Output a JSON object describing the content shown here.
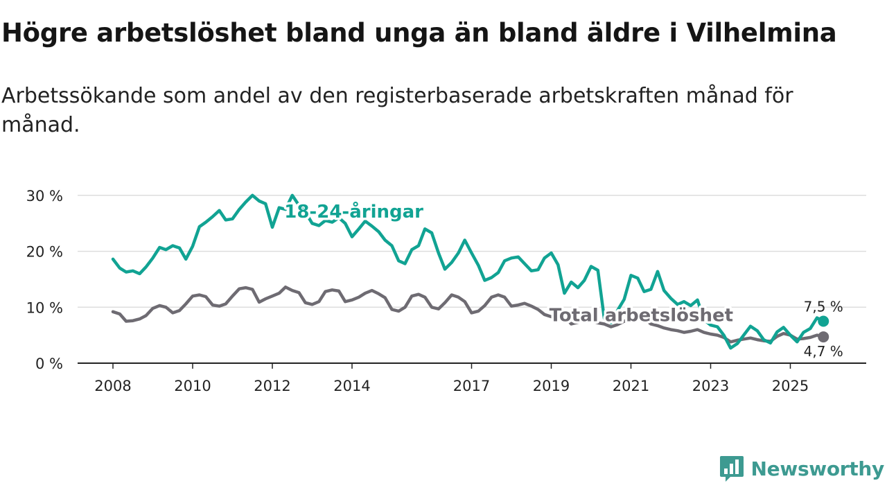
{
  "colors": {
    "youth": "#11a393",
    "total": "#6e6b72",
    "grid": "#dddddd",
    "axis": "#222222",
    "brand": "#3d9a91"
  },
  "brand": {
    "name": "Newsworthy",
    "icon": "bar-chart-speech-bubble-icon"
  },
  "chart_data": {
    "type": "line",
    "title": "Högre arbetslöshet bland unga än bland äldre i Vilhelmina",
    "subtitle": "Arbetssökande som andel av den registerbaserade arbetskraften månad för månad.",
    "xlim": [
      2008,
      2027
    ],
    "ylim": [
      0,
      30
    ],
    "y_ticks": [
      0,
      10,
      20,
      30
    ],
    "y_tick_labels": [
      "0 %",
      "10 %",
      "20 %",
      "30 %"
    ],
    "x_ticks": [
      2008,
      2010,
      2012,
      2014,
      2017,
      2019,
      2021,
      2023,
      2025
    ],
    "x_tick_labels": [
      "2008",
      "2010",
      "2012",
      "2014",
      "2017",
      "2019",
      "2021",
      "2023",
      "2025"
    ],
    "grid": true,
    "series": [
      {
        "name": "18-24-åringar",
        "end_label": "7,5 %",
        "label_anchor": [
          2012.3,
          26
        ],
        "points": [
          [
            2008.0,
            18.6
          ],
          [
            2008.17,
            17.0
          ],
          [
            2008.33,
            16.3
          ],
          [
            2008.5,
            16.5
          ],
          [
            2008.67,
            16.0
          ],
          [
            2008.83,
            17.2
          ],
          [
            2009.0,
            18.8
          ],
          [
            2009.17,
            20.7
          ],
          [
            2009.33,
            20.3
          ],
          [
            2009.5,
            21.0
          ],
          [
            2009.67,
            20.6
          ],
          [
            2009.83,
            18.6
          ],
          [
            2010.0,
            20.9
          ],
          [
            2010.17,
            24.4
          ],
          [
            2010.33,
            25.2
          ],
          [
            2010.5,
            26.2
          ],
          [
            2010.67,
            27.3
          ],
          [
            2010.83,
            25.6
          ],
          [
            2011.0,
            25.8
          ],
          [
            2011.17,
            27.5
          ],
          [
            2011.33,
            28.8
          ],
          [
            2011.5,
            30.0
          ],
          [
            2011.67,
            29.0
          ],
          [
            2011.83,
            28.5
          ],
          [
            2012.0,
            24.3
          ],
          [
            2012.17,
            27.8
          ],
          [
            2012.33,
            27.5
          ],
          [
            2012.5,
            30.0
          ],
          [
            2012.67,
            28.2
          ],
          [
            2012.83,
            27.0
          ],
          [
            2013.0,
            25.0
          ],
          [
            2013.17,
            24.6
          ],
          [
            2013.33,
            25.5
          ],
          [
            2013.5,
            25.2
          ],
          [
            2013.67,
            26.0
          ],
          [
            2013.83,
            25.0
          ],
          [
            2014.0,
            22.6
          ],
          [
            2014.17,
            24.0
          ],
          [
            2014.33,
            25.4
          ],
          [
            2014.5,
            24.5
          ],
          [
            2014.67,
            23.5
          ],
          [
            2014.83,
            22.0
          ],
          [
            2015.0,
            21.0
          ],
          [
            2015.17,
            18.3
          ],
          [
            2015.33,
            17.8
          ],
          [
            2015.5,
            20.3
          ],
          [
            2015.67,
            21.0
          ],
          [
            2015.83,
            24.0
          ],
          [
            2016.0,
            23.3
          ],
          [
            2016.17,
            19.7
          ],
          [
            2016.33,
            16.8
          ],
          [
            2016.5,
            18.0
          ],
          [
            2016.67,
            19.7
          ],
          [
            2016.83,
            22.0
          ],
          [
            2017.0,
            19.7
          ],
          [
            2017.17,
            17.5
          ],
          [
            2017.33,
            14.8
          ],
          [
            2017.5,
            15.3
          ],
          [
            2017.67,
            16.2
          ],
          [
            2017.83,
            18.3
          ],
          [
            2018.0,
            18.8
          ],
          [
            2018.17,
            19.0
          ],
          [
            2018.33,
            17.8
          ],
          [
            2018.5,
            16.5
          ],
          [
            2018.67,
            16.7
          ],
          [
            2018.83,
            18.8
          ],
          [
            2019.0,
            19.7
          ],
          [
            2019.17,
            17.6
          ],
          [
            2019.33,
            12.5
          ],
          [
            2019.5,
            14.5
          ],
          [
            2019.67,
            13.5
          ],
          [
            2019.83,
            14.8
          ],
          [
            2020.0,
            17.3
          ],
          [
            2020.17,
            16.6
          ],
          [
            2020.33,
            8.0
          ],
          [
            2020.5,
            7.2
          ],
          [
            2020.67,
            9.5
          ],
          [
            2020.83,
            11.4
          ],
          [
            2021.0,
            15.7
          ],
          [
            2021.17,
            15.2
          ],
          [
            2021.33,
            12.8
          ],
          [
            2021.5,
            13.2
          ],
          [
            2021.67,
            16.4
          ],
          [
            2021.83,
            13.0
          ],
          [
            2022.0,
            11.6
          ],
          [
            2022.17,
            10.5
          ],
          [
            2022.33,
            11.0
          ],
          [
            2022.5,
            10.3
          ],
          [
            2022.67,
            11.3
          ],
          [
            2022.83,
            7.8
          ],
          [
            2023.0,
            6.8
          ],
          [
            2023.17,
            6.5
          ],
          [
            2023.33,
            5.0
          ],
          [
            2023.5,
            2.7
          ],
          [
            2023.67,
            3.5
          ],
          [
            2023.83,
            5.0
          ],
          [
            2024.0,
            6.6
          ],
          [
            2024.17,
            5.8
          ],
          [
            2024.33,
            4.2
          ],
          [
            2024.5,
            3.6
          ],
          [
            2024.67,
            5.6
          ],
          [
            2024.83,
            6.4
          ],
          [
            2025.0,
            5.0
          ],
          [
            2025.17,
            3.8
          ],
          [
            2025.33,
            5.5
          ],
          [
            2025.5,
            6.2
          ],
          [
            2025.67,
            8.1
          ],
          [
            2025.83,
            7.5
          ]
        ]
      },
      {
        "name": "Total arbetslöshet",
        "end_label": "4,7 %",
        "label_anchor": [
          2018.95,
          7.5
        ],
        "points": [
          [
            2008.0,
            9.2
          ],
          [
            2008.17,
            8.8
          ],
          [
            2008.33,
            7.5
          ],
          [
            2008.5,
            7.6
          ],
          [
            2008.67,
            7.9
          ],
          [
            2008.83,
            8.5
          ],
          [
            2009.0,
            9.8
          ],
          [
            2009.17,
            10.3
          ],
          [
            2009.33,
            10.0
          ],
          [
            2009.5,
            9.0
          ],
          [
            2009.67,
            9.4
          ],
          [
            2009.83,
            10.6
          ],
          [
            2010.0,
            12.0
          ],
          [
            2010.17,
            12.2
          ],
          [
            2010.33,
            11.9
          ],
          [
            2010.5,
            10.4
          ],
          [
            2010.67,
            10.2
          ],
          [
            2010.83,
            10.6
          ],
          [
            2011.0,
            12.0
          ],
          [
            2011.17,
            13.3
          ],
          [
            2011.33,
            13.5
          ],
          [
            2011.5,
            13.2
          ],
          [
            2011.67,
            10.9
          ],
          [
            2011.83,
            11.5
          ],
          [
            2012.0,
            12.0
          ],
          [
            2012.17,
            12.5
          ],
          [
            2012.33,
            13.6
          ],
          [
            2012.5,
            13.0
          ],
          [
            2012.67,
            12.6
          ],
          [
            2012.83,
            10.8
          ],
          [
            2013.0,
            10.5
          ],
          [
            2013.17,
            11.0
          ],
          [
            2013.33,
            12.8
          ],
          [
            2013.5,
            13.1
          ],
          [
            2013.67,
            12.9
          ],
          [
            2013.83,
            11.0
          ],
          [
            2014.0,
            11.3
          ],
          [
            2014.17,
            11.8
          ],
          [
            2014.33,
            12.5
          ],
          [
            2014.5,
            13.0
          ],
          [
            2014.67,
            12.4
          ],
          [
            2014.83,
            11.7
          ],
          [
            2015.0,
            9.6
          ],
          [
            2015.17,
            9.3
          ],
          [
            2015.33,
            10.0
          ],
          [
            2015.5,
            12.0
          ],
          [
            2015.67,
            12.3
          ],
          [
            2015.83,
            11.8
          ],
          [
            2016.0,
            10.0
          ],
          [
            2016.17,
            9.7
          ],
          [
            2016.33,
            10.8
          ],
          [
            2016.5,
            12.2
          ],
          [
            2016.67,
            11.8
          ],
          [
            2016.83,
            11.0
          ],
          [
            2017.0,
            9.0
          ],
          [
            2017.17,
            9.3
          ],
          [
            2017.33,
            10.3
          ],
          [
            2017.5,
            11.8
          ],
          [
            2017.67,
            12.2
          ],
          [
            2017.83,
            11.8
          ],
          [
            2018.0,
            10.2
          ],
          [
            2018.17,
            10.4
          ],
          [
            2018.33,
            10.7
          ],
          [
            2018.5,
            10.2
          ],
          [
            2018.67,
            9.6
          ],
          [
            2018.83,
            8.7
          ],
          [
            2019.0,
            8.3
          ],
          [
            2019.17,
            8.8
          ],
          [
            2019.33,
            8.5
          ],
          [
            2019.5,
            7.0
          ],
          [
            2019.67,
            7.3
          ],
          [
            2019.83,
            7.9
          ],
          [
            2020.0,
            7.6
          ],
          [
            2020.17,
            7.2
          ],
          [
            2020.33,
            7.0
          ],
          [
            2020.5,
            6.5
          ],
          [
            2020.67,
            6.9
          ],
          [
            2020.83,
            7.5
          ],
          [
            2021.0,
            7.9
          ],
          [
            2021.17,
            8.3
          ],
          [
            2021.33,
            8.0
          ],
          [
            2021.5,
            7.0
          ],
          [
            2021.67,
            6.7
          ],
          [
            2021.83,
            6.3
          ],
          [
            2022.0,
            6.0
          ],
          [
            2022.17,
            5.8
          ],
          [
            2022.33,
            5.5
          ],
          [
            2022.5,
            5.7
          ],
          [
            2022.67,
            6.0
          ],
          [
            2022.83,
            5.5
          ],
          [
            2023.0,
            5.2
          ],
          [
            2023.17,
            5.0
          ],
          [
            2023.33,
            4.6
          ],
          [
            2023.5,
            3.8
          ],
          [
            2023.67,
            4.1
          ],
          [
            2023.83,
            4.3
          ],
          [
            2024.0,
            4.5
          ],
          [
            2024.17,
            4.2
          ],
          [
            2024.33,
            4.0
          ],
          [
            2024.5,
            3.9
          ],
          [
            2024.67,
            4.8
          ],
          [
            2024.83,
            5.3
          ],
          [
            2025.0,
            5.0
          ],
          [
            2025.17,
            4.3
          ],
          [
            2025.33,
            4.4
          ],
          [
            2025.5,
            4.6
          ],
          [
            2025.67,
            5.0
          ],
          [
            2025.83,
            4.7
          ]
        ]
      }
    ]
  }
}
